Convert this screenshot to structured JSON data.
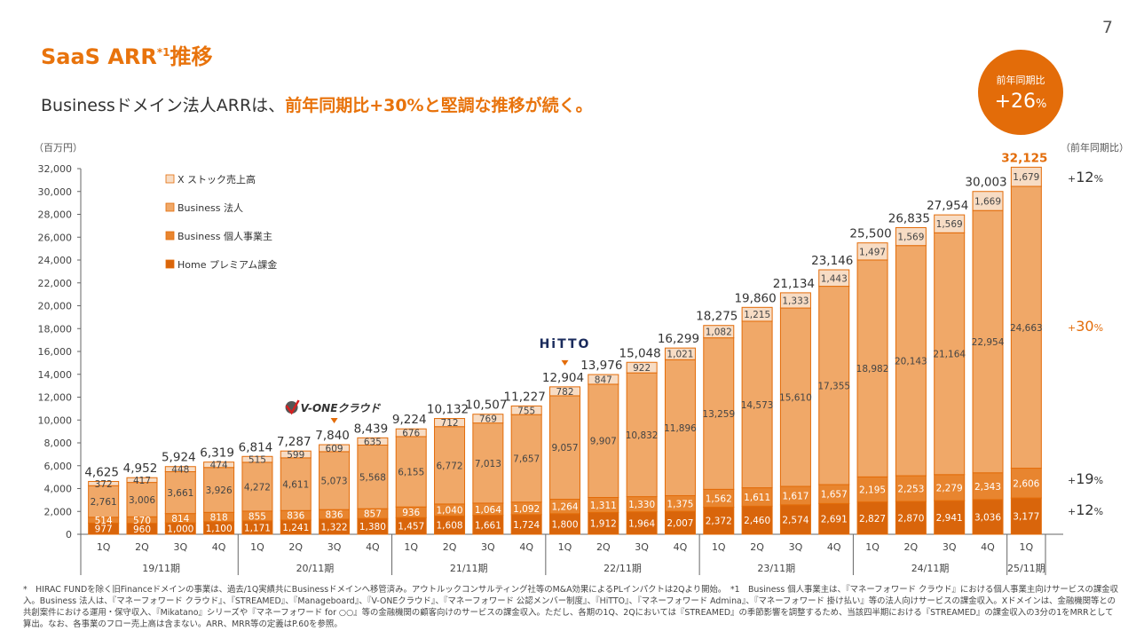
{
  "page_number": "7",
  "title": {
    "main": "SaaS ARR",
    "sup": "*1",
    "suffix": "推移"
  },
  "subtitle": {
    "plain": "Businessドメイン法人ARRは、",
    "highlight": "前年同期比+30%と堅調な推移が続く。"
  },
  "yoy_badge": {
    "label": "前年同期比",
    "sign": "+",
    "number": "26",
    "unit": "%"
  },
  "colors": {
    "accent": "#e36c09",
    "xstock": "#f7dcc4",
    "corporate": "#f0a868",
    "individual": "#e8852f",
    "home": "#d9650b"
  },
  "chart_data": {
    "type": "stacked-bar",
    "unit_label": "（百万円）",
    "yoy_header": "（前年同期比）",
    "ylim": [
      0,
      32000
    ],
    "yticks": [
      "0",
      "2,000",
      "4,000",
      "6,000",
      "8,000",
      "10,000",
      "12,000",
      "14,000",
      "16,000",
      "18,000",
      "20,000",
      "22,000",
      "24,000",
      "26,000",
      "28,000",
      "30,000",
      "32,000"
    ],
    "categories": [
      "1Q",
      "2Q",
      "3Q",
      "4Q",
      "1Q",
      "2Q",
      "3Q",
      "4Q",
      "1Q",
      "2Q",
      "3Q",
      "4Q",
      "1Q",
      "2Q",
      "3Q",
      "4Q",
      "1Q",
      "2Q",
      "3Q",
      "4Q",
      "1Q",
      "2Q",
      "3Q",
      "4Q",
      "1Q"
    ],
    "periods": [
      {
        "label": "19/11期",
        "count": 4
      },
      {
        "label": "20/11期",
        "count": 4
      },
      {
        "label": "21/11期",
        "count": 4
      },
      {
        "label": "22/11期",
        "count": 4
      },
      {
        "label": "23/11期",
        "count": 4
      },
      {
        "label": "24/11期",
        "count": 4
      },
      {
        "label": "25/11期",
        "count": 1
      }
    ],
    "series": [
      {
        "name": "Home プレミアム課金",
        "key": "home",
        "values": [
          977,
          960,
          1000,
          1100,
          1171,
          1241,
          1322,
          1380,
          1457,
          1608,
          1661,
          1724,
          1800,
          1912,
          1964,
          2007,
          2372,
          2460,
          2574,
          2691,
          2827,
          2870,
          2941,
          3036,
          3177
        ],
        "labels": [
          "977",
          "960",
          "1,000",
          "1,100",
          "1,171",
          "1,241",
          "1,322",
          "1,380",
          "1,457",
          "1,608",
          "1,661",
          "1,724",
          "1,800",
          "1,912",
          "1,964",
          "2,007",
          "2,372",
          "2,460",
          "2,574",
          "2,691",
          "2,827",
          "2,870",
          "2,941",
          "3,036",
          "3,177"
        ]
      },
      {
        "name": "Business 個人事業主",
        "key": "individual",
        "values": [
          514,
          570,
          814,
          818,
          855,
          836,
          836,
          857,
          936,
          1040,
          1064,
          1092,
          1264,
          1311,
          1330,
          1375,
          1562,
          1611,
          1617,
          1657,
          2195,
          2253,
          2279,
          2343,
          2606
        ],
        "labels": [
          "514",
          "570",
          "814",
          "818",
          "855",
          "836",
          "836",
          "857",
          "936",
          "1,040",
          "1,064",
          "1,092",
          "1,264",
          "1,311",
          "1,330",
          "1,375",
          "1,562",
          "1,611",
          "1,617",
          "1,657",
          "2,195",
          "2,253",
          "2,279",
          "2,343",
          "2,606"
        ]
      },
      {
        "name": "Business 法人",
        "key": "corporate",
        "values": [
          2761,
          3006,
          3661,
          3926,
          4272,
          4611,
          5073,
          5568,
          6155,
          6772,
          7013,
          7657,
          9057,
          9907,
          10832,
          11896,
          13259,
          14573,
          15610,
          17355,
          18982,
          20143,
          21164,
          22954,
          24663
        ],
        "labels": [
          "2,761",
          "3,006",
          "3,661",
          "3,926",
          "4,272",
          "4,611",
          "5,073",
          "5,568",
          "6,155",
          "6,772",
          "7,013",
          "7,657",
          "9,057",
          "9,907",
          "10,832",
          "11,896",
          "13,259",
          "14,573",
          "15,610",
          "17,355",
          "18,982",
          "20,143",
          "21,164",
          "22,954",
          "24,663"
        ]
      },
      {
        "name": "X ストック売上高",
        "key": "xstock",
        "values": [
          372,
          417,
          448,
          474,
          515,
          599,
          609,
          635,
          676,
          712,
          769,
          755,
          782,
          847,
          922,
          1021,
          1082,
          1215,
          1333,
          1443,
          1497,
          1569,
          1569,
          1669,
          1679
        ],
        "labels": [
          "372",
          "417",
          "448",
          "474",
          "515",
          "599",
          "609",
          "635",
          "676",
          "712",
          "769",
          "755",
          "782",
          "847",
          "922",
          "1,021",
          "1,082",
          "1,215",
          "1,333",
          "1,443",
          "1,497",
          "1,569",
          "1,569",
          "1,669",
          "1,679"
        ]
      }
    ],
    "legend": [
      "X ストック売上高",
      "Business 法人",
      "Business 個人事業主",
      "Home プレミアム課金"
    ],
    "totals": [
      4625,
      4952,
      5924,
      6319,
      6814,
      7287,
      7840,
      8439,
      9224,
      10132,
      10507,
      11227,
      12904,
      13976,
      15048,
      16299,
      18275,
      19860,
      21134,
      23146,
      25500,
      26835,
      27954,
      30003,
      32125
    ],
    "total_labels": [
      "4,625",
      "4,952",
      "5,924",
      "6,319",
      "6,814",
      "7,287",
      "7,840",
      "8,439",
      "9,224",
      "10,132",
      "10,507",
      "11,227",
      "12,904",
      "13,976",
      "15,048",
      "16,299",
      "18,275",
      "19,860",
      "21,134",
      "23,146",
      "25,500",
      "26,835",
      "27,954",
      "30,003",
      "32,125"
    ],
    "yoy_labels": [
      {
        "series": "xstock",
        "sign": "+",
        "num": "12",
        "unit": "%"
      },
      {
        "series": "corporate",
        "sign": "+",
        "num": "30",
        "unit": "%"
      },
      {
        "series": "individual",
        "sign": "+",
        "num": "19",
        "unit": "%"
      },
      {
        "series": "home",
        "sign": "+",
        "num": "12",
        "unit": "%"
      }
    ],
    "annotations": [
      {
        "text": "V-ONEクラウド",
        "bar_index": 6
      },
      {
        "text": "HiTTO",
        "bar_index": 12
      }
    ]
  },
  "footnote": "*　HIRAC FUNDを除く旧Financeドメインの事業は、過去/1Q実績共にBusinessドメインへ移管済み。アウトルックコンサルティング社等のM&A効果によるPLインパクトは2Qより開始。　*1　Business 個人事業主は、『マネーフォワード クラウド』における個人事業主向けサービスの課金収入。Business 法人は、『マネーフォワード クラウド』、『STREAMED』、『Manageboard』、『V-ONEクラウド』、『マネーフォワード 公認メンバー制度』、『HiTTO』、『マネーフォワード Admina』、『マネーフォワード 掛け払い』等の法人向けサービスの課金収入。Xドメインは、金融機関等との共創案件における運用・保守収入、『Mikatano』シリーズや『マネーフォワード for ○○』等の金融機関の顧客向けのサービスの課金収入。ただし、各期の1Q、2Qにおいては『STREAMED』の季節影響を調整するため、当該四半期における『STREAMED』の課金収入の3分の1をMRRとして算出。なお、各事業のフロー売上高は含まない。ARR、MRR等の定義はP.60を参照。"
}
